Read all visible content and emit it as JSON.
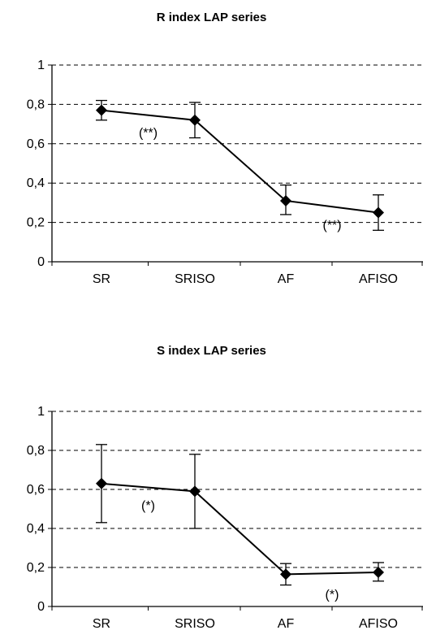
{
  "chart_data": [
    {
      "type": "line",
      "title": "R index LAP series",
      "categories": [
        "SR",
        "SRISO",
        "AF",
        "AFISO"
      ],
      "series": [
        {
          "values": [
            0.77,
            0.72,
            0.31,
            0.25
          ],
          "error_low": [
            0.72,
            0.63,
            0.24,
            0.16
          ],
          "error_high": [
            0.82,
            0.81,
            0.39,
            0.34
          ]
        }
      ],
      "ylim": [
        0,
        1
      ],
      "yticks": [
        "0",
        "0,2",
        "0,4",
        "0,6",
        "0,8",
        "1"
      ],
      "grid": "horizontal dashed",
      "annotations": [
        {
          "text": "(**)",
          "x": 0.5,
          "y": 0.66
        },
        {
          "text": "(**)",
          "x": 2.5,
          "y": 0.19
        }
      ]
    },
    {
      "type": "line",
      "title": "S index LAP series",
      "categories": [
        "SR",
        "SRISO",
        "AF",
        "AFISO"
      ],
      "series": [
        {
          "values": [
            0.63,
            0.59,
            0.165,
            0.175
          ],
          "error_low": [
            0.43,
            0.4,
            0.11,
            0.13
          ],
          "error_high": [
            0.83,
            0.78,
            0.22,
            0.225
          ]
        }
      ],
      "ylim": [
        0,
        1
      ],
      "yticks": [
        "0",
        "0,2",
        "0,4",
        "0,6",
        "0,8",
        "1"
      ],
      "grid": "horizontal dashed",
      "annotations": [
        {
          "text": "(*)",
          "x": 0.5,
          "y": 0.52
        },
        {
          "text": "(*)",
          "x": 2.5,
          "y": 0.065
        }
      ]
    }
  ]
}
